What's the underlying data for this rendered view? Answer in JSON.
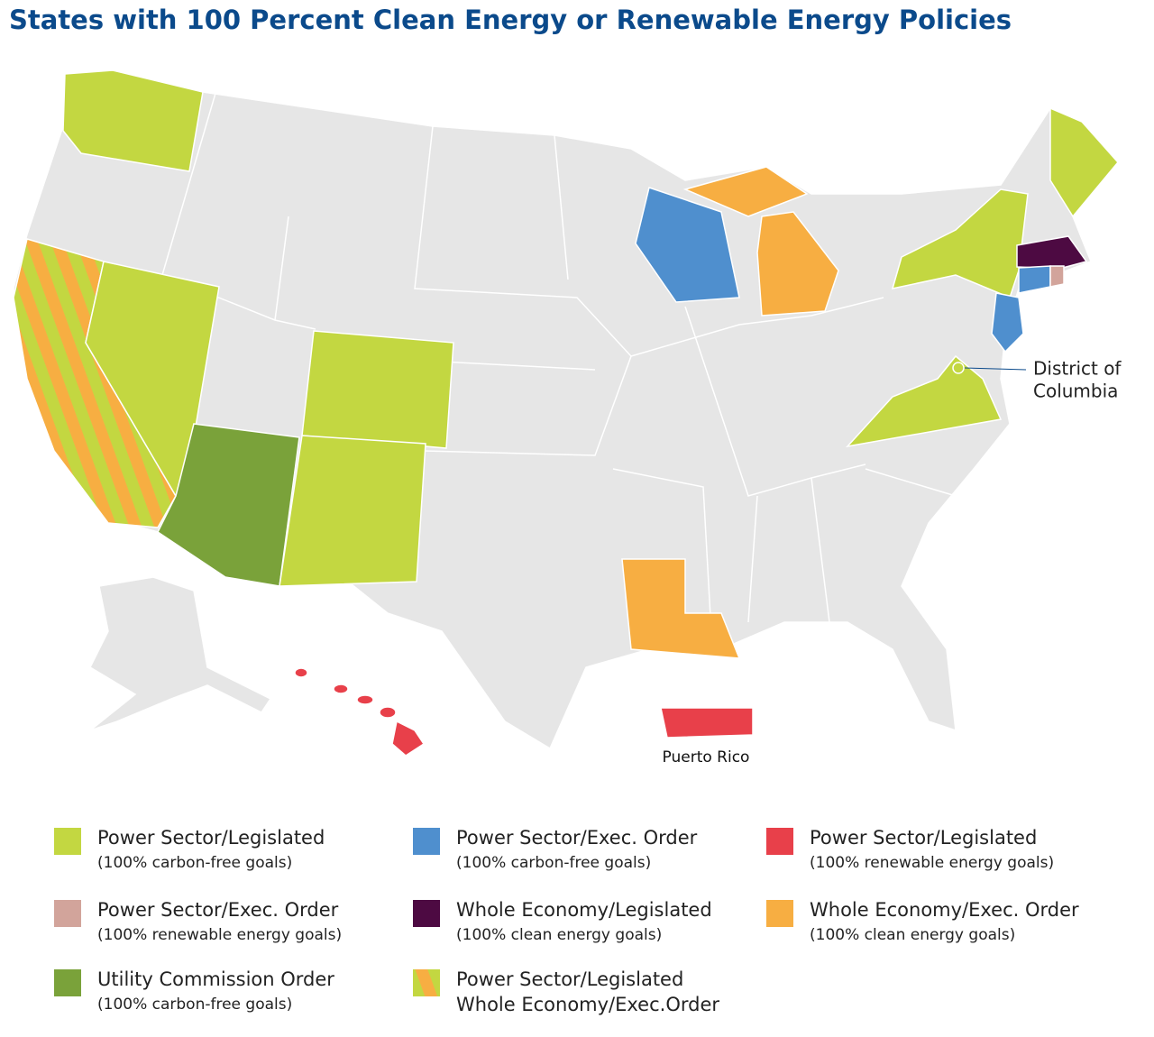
{
  "title": "States with 100 Percent Clean Energy or Renewable Energy Policies",
  "labels": {
    "dc": [
      "District of",
      "Columbia"
    ],
    "puerto_rico": "Puerto Rico"
  },
  "legend": [
    {
      "colors": [
        "#c3d741"
      ],
      "lines": [
        "Power Sector/Legislated"
      ],
      "note": "(100% carbon-free goals)"
    },
    {
      "colors": [
        "#4f8fce"
      ],
      "lines": [
        "Power Sector/Exec. Order"
      ],
      "note": "(100% carbon-free goals)"
    },
    {
      "colors": [
        "#e8404a"
      ],
      "lines": [
        "Power Sector/Legislated"
      ],
      "note": "(100% renewable energy goals)"
    },
    {
      "colors": [
        "#d2a49b"
      ],
      "lines": [
        "Power Sector/Exec. Order"
      ],
      "note": "(100% renewable energy goals)"
    },
    {
      "colors": [
        "#4d0a42"
      ],
      "lines": [
        "Whole Economy/Legislated"
      ],
      "note": "(100% clean energy goals)"
    },
    {
      "colors": [
        "#f7ae42"
      ],
      "lines": [
        "Whole Economy/Exec. Order"
      ],
      "note": "(100% clean energy goals)"
    },
    {
      "colors": [
        "#7aa23a"
      ],
      "lines": [
        "Utility Commission Order"
      ],
      "note": "(100% carbon-free goals)"
    },
    {
      "colors": [
        "#c3d741",
        "#f7ae42"
      ],
      "lines": [
        "Power Sector/Legislated",
        "Whole Economy/Exec.Order"
      ]
    }
  ]
}
